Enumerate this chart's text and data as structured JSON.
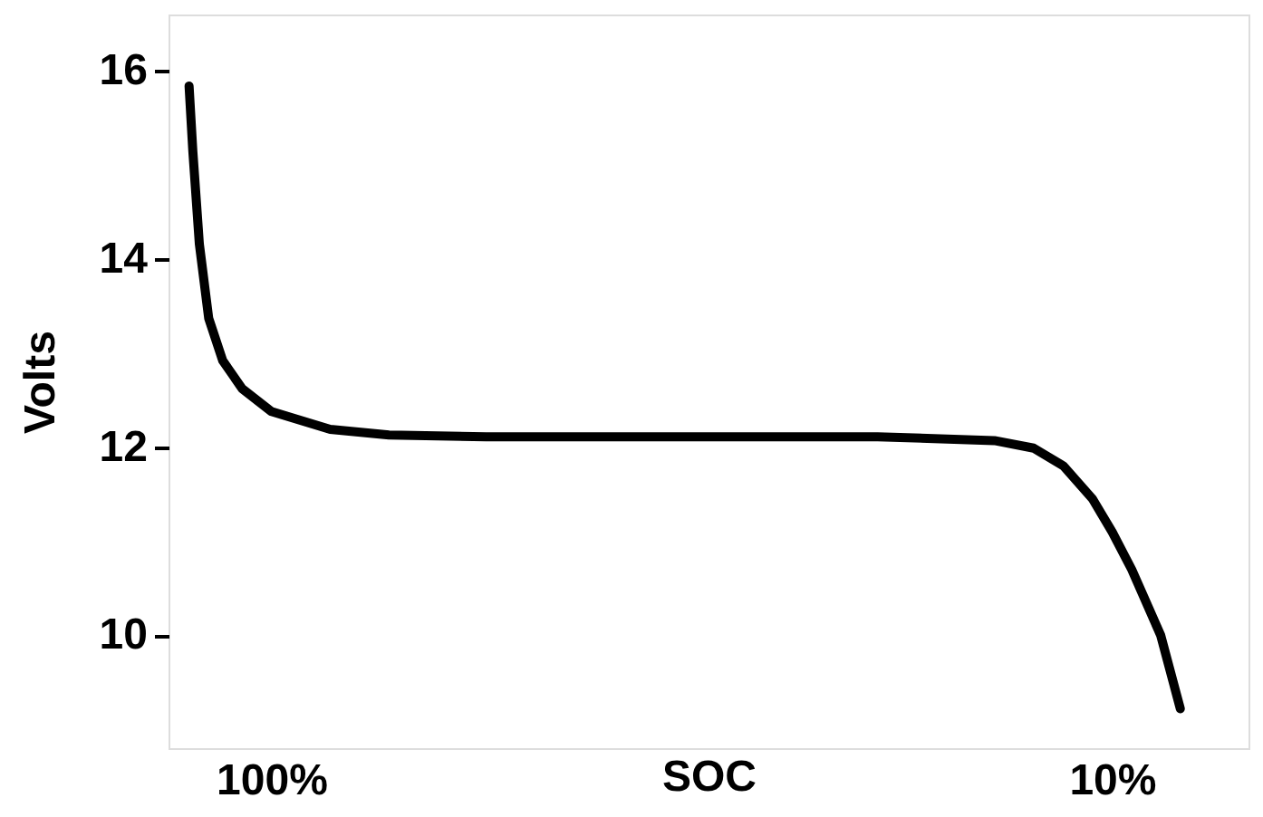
{
  "chart_data": {
    "type": "line",
    "xlabel": "SOC",
    "ylabel": "Volts",
    "x": [
      108.8,
      108.4,
      107.7,
      106.7,
      105.2,
      103.1,
      100,
      93.7,
      87.4,
      77,
      56,
      35.1,
      22.6,
      18.4,
      15.2,
      12.1,
      10,
      7.9,
      4.8,
      2.7
    ],
    "series": [
      {
        "color": "#000000",
        "values": [
          15.84,
          15.15,
          14.16,
          13.37,
          12.92,
          12.62,
          12.38,
          12.19,
          12.13,
          12.11,
          12.11,
          12.11,
          12.07,
          11.99,
          11.8,
          11.45,
          11.1,
          10.7,
          10.0,
          9.22
        ]
      }
    ],
    "xlim": [
      111,
      -4.6
    ],
    "xticks": [
      {
        "value": 100,
        "label": "100%"
      },
      {
        "value": 10,
        "label": "10%"
      }
    ],
    "ylim": [
      8.8,
      16.6
    ],
    "yticks": [
      10,
      12,
      14,
      16
    ],
    "grid": false,
    "marker": "none",
    "line_style": "solid"
  }
}
